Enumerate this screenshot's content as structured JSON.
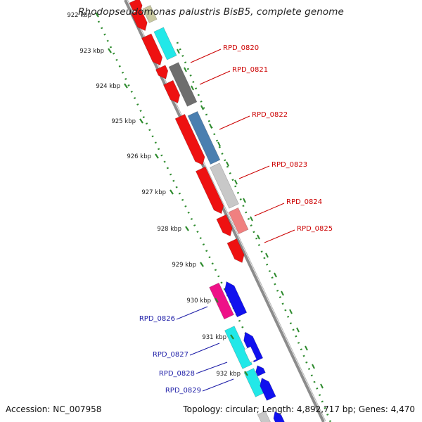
{
  "title": "Rhodopseudomonas palustris BisB5, complete genome",
  "footer": {
    "accession": "Accession: NC_007958",
    "summary": "Topology: circular; Length: 4,892,717 bp; Genes: 4,470"
  },
  "colors": {
    "backbone": "#8c8c8c",
    "tick_green": "#2e8b2e",
    "forward_label": "#cc0000",
    "reverse_label": "#1a1aa6",
    "cds_red": "#ee1111",
    "cyan": "#22e8e8",
    "dark_gray": "#6e6e6e",
    "steel_blue": "#4a7fb0",
    "light_gray": "#c8c8c8",
    "salmon": "#f08080",
    "magenta": "#ee1188",
    "blue": "#1111ee",
    "olive": "#c8c8a0"
  },
  "ticks": [
    {
      "label": "922 kbp",
      "t": 0.0
    },
    {
      "label": "923 kbp",
      "t": 1.0
    },
    {
      "label": "924 kbp",
      "t": 2.0
    },
    {
      "label": "925 kbp",
      "t": 3.0
    },
    {
      "label": "926 kbp",
      "t": 4.0
    },
    {
      "label": "927 kbp",
      "t": 5.0
    },
    {
      "label": "928 kbp",
      "t": 6.0
    },
    {
      "label": "929 kbp",
      "t": 7.0
    },
    {
      "label": "930 kbp",
      "t": 8.0
    },
    {
      "label": "931 kbp",
      "t": 9.0
    },
    {
      "label": "932 kbp",
      "t": 10.0
    }
  ],
  "forward_labels": [
    {
      "name": "RPD_0820"
    },
    {
      "name": "RPD_0821"
    },
    {
      "name": "RPD_0822"
    },
    {
      "name": "RPD_0823"
    },
    {
      "name": "RPD_0824"
    },
    {
      "name": "RPD_0825"
    }
  ],
  "reverse_labels": [
    {
      "name": "RPD_0826"
    },
    {
      "name": "RPD_0827"
    },
    {
      "name": "RPD_0828"
    },
    {
      "name": "RPD_0829"
    }
  ]
}
